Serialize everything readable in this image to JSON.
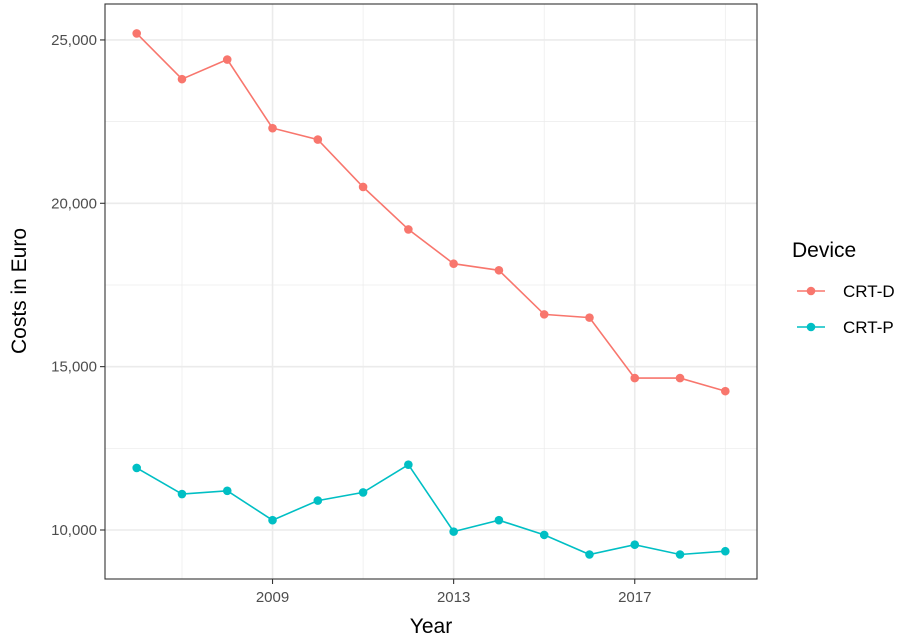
{
  "chart_data": {
    "type": "line",
    "title": "",
    "xlabel": "Year",
    "ylabel": "Costs in Euro",
    "x": [
      2006,
      2007,
      2008,
      2009,
      2010,
      2011,
      2012,
      2013,
      2014,
      2015,
      2016,
      2017,
      2018,
      2019
    ],
    "xlim": [
      2005.3,
      2019.7
    ],
    "ylim": [
      8500,
      26100
    ],
    "x_ticks": [
      2009,
      2013,
      2017
    ],
    "x_tick_labels": [
      "2009",
      "2013",
      "2017"
    ],
    "y_ticks": [
      10000,
      15000,
      20000,
      25000
    ],
    "y_tick_labels": [
      "10,000",
      "15,000",
      "20,000",
      "25,000"
    ],
    "grid": true,
    "legend": {
      "title": "Device",
      "position": "right"
    },
    "series": [
      {
        "name": "CRT-D",
        "color": "#F8766D",
        "values": [
          25200,
          23800,
          24400,
          22300,
          21950,
          20500,
          19200,
          18150,
          17950,
          16600,
          16500,
          14650,
          14650,
          14250
        ]
      },
      {
        "name": "CRT-P",
        "color": "#00BFC4",
        "values": [
          11900,
          11100,
          11200,
          10300,
          10900,
          11150,
          12000,
          9950,
          10300,
          9850,
          9250,
          9550,
          9250,
          9350
        ]
      }
    ]
  }
}
